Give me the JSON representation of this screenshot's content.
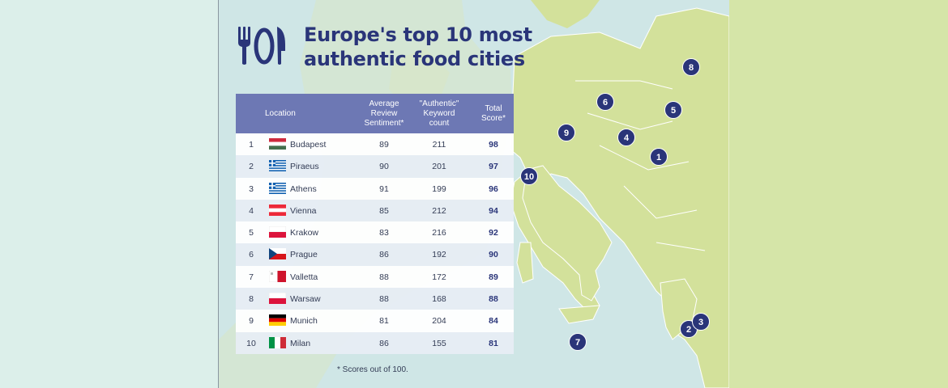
{
  "title": {
    "line1": "Europe's top 10 most",
    "line2": "authentic food cities"
  },
  "logo_icon": "cutlery-icon",
  "colors": {
    "navy": "#2a3579",
    "header": "#6d78b4",
    "land": "#d3e19b",
    "sea": "#cfe6e6"
  },
  "table": {
    "headers": {
      "location": "Location",
      "avg_line1": "Average",
      "avg_line2": "Review",
      "avg_line3": "Sentiment*",
      "kw_line1": "\"Authentic\"",
      "kw_line2": "Keyword",
      "kw_line3": "count",
      "score_line1": "Total",
      "score_line2": "Score*"
    },
    "rows": [
      {
        "rank": "1",
        "city": "Budapest",
        "flag": "hungary-flag",
        "avg": "89",
        "kw": "211",
        "score": "98"
      },
      {
        "rank": "2",
        "city": "Piraeus",
        "flag": "greece-flag",
        "avg": "90",
        "kw": "201",
        "score": "97"
      },
      {
        "rank": "3",
        "city": "Athens",
        "flag": "greece-flag",
        "avg": "91",
        "kw": "199",
        "score": "96"
      },
      {
        "rank": "4",
        "city": "Vienna",
        "flag": "austria-flag",
        "avg": "85",
        "kw": "212",
        "score": "94"
      },
      {
        "rank": "5",
        "city": "Krakow",
        "flag": "poland-flag",
        "avg": "83",
        "kw": "216",
        "score": "92"
      },
      {
        "rank": "6",
        "city": "Prague",
        "flag": "czechia-flag",
        "avg": "86",
        "kw": "192",
        "score": "90"
      },
      {
        "rank": "7",
        "city": "Valletta",
        "flag": "malta-flag",
        "avg": "88",
        "kw": "172",
        "score": "89"
      },
      {
        "rank": "8",
        "city": "Warsaw",
        "flag": "poland-flag",
        "avg": "88",
        "kw": "168",
        "score": "88"
      },
      {
        "rank": "9",
        "city": "Munich",
        "flag": "germany-flag",
        "avg": "81",
        "kw": "204",
        "score": "84"
      },
      {
        "rank": "10",
        "city": "Milan",
        "flag": "italy-flag",
        "avg": "86",
        "kw": "155",
        "score": "81"
      }
    ]
  },
  "footnote": "* Scores out of 100.",
  "markers": [
    "1",
    "2",
    "3",
    "4",
    "5",
    "6",
    "7",
    "8",
    "9",
    "10"
  ]
}
